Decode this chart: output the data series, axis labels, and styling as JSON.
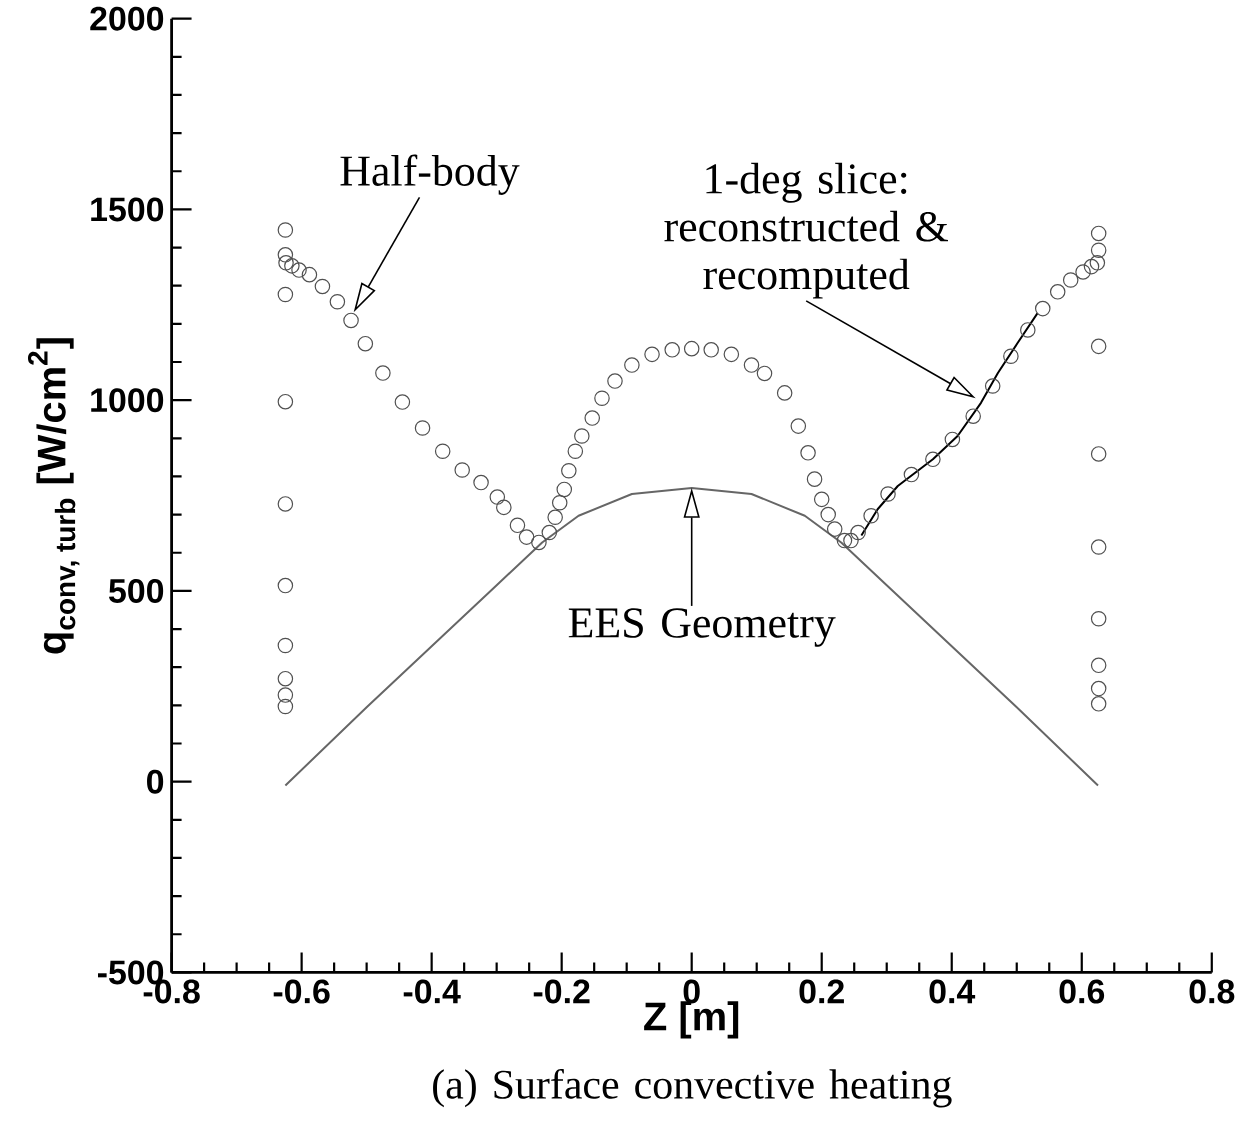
{
  "chart_data": {
    "type": "scatter",
    "xlabel": "Z [m]",
    "ylabel": "\\text{q}_{\\text{conv, turb}}\\ \\text{[W/cm}^{\\text{2}}\\text{]}",
    "xlim": [
      -0.8,
      0.8
    ],
    "xticks": [
      -0.8,
      -0.6,
      -0.4,
      -0.2,
      0,
      0.2,
      0.4,
      0.6,
      0.8
    ],
    "ylim": [
      -500,
      2000
    ],
    "yticks": [
      -500,
      0,
      500,
      1000,
      1500,
      2000
    ],
    "grid": false,
    "series": [
      {
        "marker": "circle",
        "color": "#505050",
        "x": [
          -0.625,
          -0.625,
          -0.625,
          -0.625,
          -0.625,
          -0.625,
          -0.625,
          -0.625,
          -0.625,
          -0.625,
          -0.624,
          -0.615,
          -0.604,
          -0.588,
          -0.568,
          -0.545,
          -0.524,
          -0.502,
          -0.475,
          -0.445,
          -0.414,
          -0.383,
          -0.353,
          -0.324,
          -0.299,
          -0.289,
          -0.268,
          -0.254,
          -0.235,
          -0.219,
          -0.21,
          -0.203,
          -0.196,
          -0.189,
          -0.179,
          -0.169,
          -0.153,
          -0.138,
          -0.118,
          -0.092,
          -0.061,
          -0.03,
          0,
          0.03,
          0.061,
          0.092,
          0.112,
          0.143,
          0.164,
          0.179,
          0.189,
          0.2,
          0.21,
          0.22,
          0.235,
          0.245,
          0.256,
          0.276,
          0.302,
          0.338,
          0.371,
          0.401,
          0.433,
          0.463,
          0.491,
          0.517,
          0.54,
          0.563,
          0.583,
          0.602,
          0.615,
          0.624,
          0.626,
          0.626,
          0.626,
          0.626,
          0.626,
          0.626,
          0.626,
          0.626,
          0.626
        ],
        "values": [
          1446,
          1381,
          1277,
          996,
          728,
          514,
          357,
          270,
          227,
          197,
          1360,
          1352,
          1341,
          1329,
          1298,
          1258,
          1209,
          1148,
          1071,
          995,
          927,
          866,
          817,
          784,
          746,
          719,
          672,
          641,
          627,
          653,
          693,
          731,
          766,
          815,
          866,
          906,
          953,
          1005,
          1050,
          1092,
          1120,
          1132,
          1135,
          1132,
          1120,
          1092,
          1070,
          1019,
          932,
          862,
          793,
          740,
          700,
          662,
          632,
          632,
          653,
          697,
          754,
          805,
          845,
          897,
          958,
          1037,
          1115,
          1184,
          1240,
          1284,
          1315,
          1336,
          1350,
          1360,
          1437,
          1393,
          1141,
          859,
          615,
          427,
          305,
          244,
          204
        ]
      },
      {
        "type": "line",
        "marker": "none",
        "color": "#000000",
        "x": [
          0.261,
          0.286,
          0.317,
          0.371,
          0.409,
          0.445,
          0.471,
          0.501,
          0.532
        ],
        "values": [
          645,
          714,
          775,
          845,
          906,
          993,
          1071,
          1149,
          1228
        ]
      },
      {
        "type": "line",
        "marker": "none",
        "color": "#666666",
        "x": [
          -0.625,
          -0.5,
          -0.4,
          -0.3,
          -0.23,
          -0.174,
          -0.092,
          0,
          0.092,
          0.174,
          0.23,
          0.3,
          0.4,
          0.5,
          0.625
        ],
        "values": [
          -10,
          195,
          355,
          515,
          627,
          697,
          754,
          770,
          754,
          697,
          627,
          515,
          355,
          195,
          -10
        ]
      }
    ],
    "annotations": [
      {
        "text": "Half-body",
        "x": -0.52,
        "y": 1230
      },
      {
        "text": "1-deg slice: reconstructed & recomputed",
        "x": 0.437,
        "y": 1005
      },
      {
        "text": "EES Geometry",
        "x": 0,
        "y": 770
      },
      "(a)  Surface convective heating"
    ]
  }
}
